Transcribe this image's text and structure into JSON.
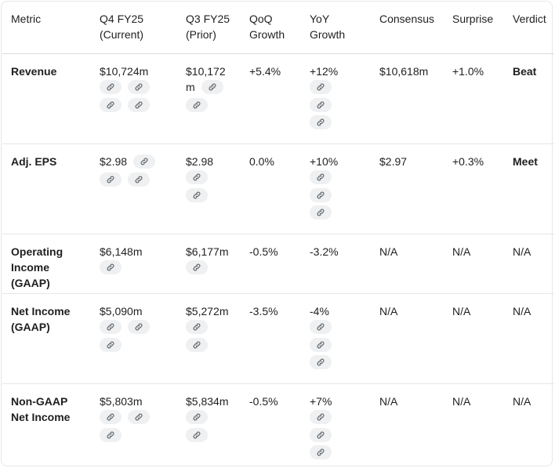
{
  "headers": {
    "metric": "Metric",
    "q4": [
      "Q4 FY25",
      "(Current)"
    ],
    "q3": [
      "Q3 FY25",
      "(Prior)"
    ],
    "qoq": [
      "QoQ",
      "Growth"
    ],
    "yoy": [
      "YoY",
      "Growth"
    ],
    "consensus": "Consensus",
    "surprise": "Surprise",
    "verdict": "Verdict"
  },
  "rows": [
    {
      "metric": [
        "Revenue"
      ],
      "q4": "$10,724m",
      "q3": [
        "$10,172",
        "m"
      ],
      "qoq": "+5.4%",
      "yoy": "+12%",
      "consensus": "$10,618m",
      "surprise": "+1.0%",
      "verdict": "Beat"
    },
    {
      "metric": [
        "Adj. EPS"
      ],
      "q4": "$2.98",
      "q3": "$2.98",
      "qoq": "0.0%",
      "yoy": "+10%",
      "consensus": "$2.97",
      "surprise": "+0.3%",
      "verdict": "Meet"
    },
    {
      "metric": [
        "Operating",
        "Income",
        "(GAAP)"
      ],
      "q4": "$6,148m",
      "q3": "$6,177m",
      "qoq": "-0.5%",
      "yoy": "-3.2%",
      "consensus": "N/A",
      "surprise": "N/A",
      "verdict": "N/A"
    },
    {
      "metric": [
        "Net Income",
        "(GAAP)"
      ],
      "q4": "$5,090m",
      "q3": "$5,272m",
      "qoq": "-3.5%",
      "yoy": "-4%",
      "consensus": "N/A",
      "surprise": "N/A",
      "verdict": "N/A"
    },
    {
      "metric": [
        "Non-GAAP",
        "Net Income"
      ],
      "q4": "$5,803m",
      "q3": "$5,834m",
      "qoq": "-0.5%",
      "yoy": "+7%",
      "consensus": "N/A",
      "surprise": "N/A",
      "verdict": "N/A"
    }
  ],
  "icons": {
    "citation": "link-icon"
  },
  "colors": {
    "chip_bg": "#eef0f1",
    "icon": "#5f6368",
    "text": "#1f1f1f"
  }
}
